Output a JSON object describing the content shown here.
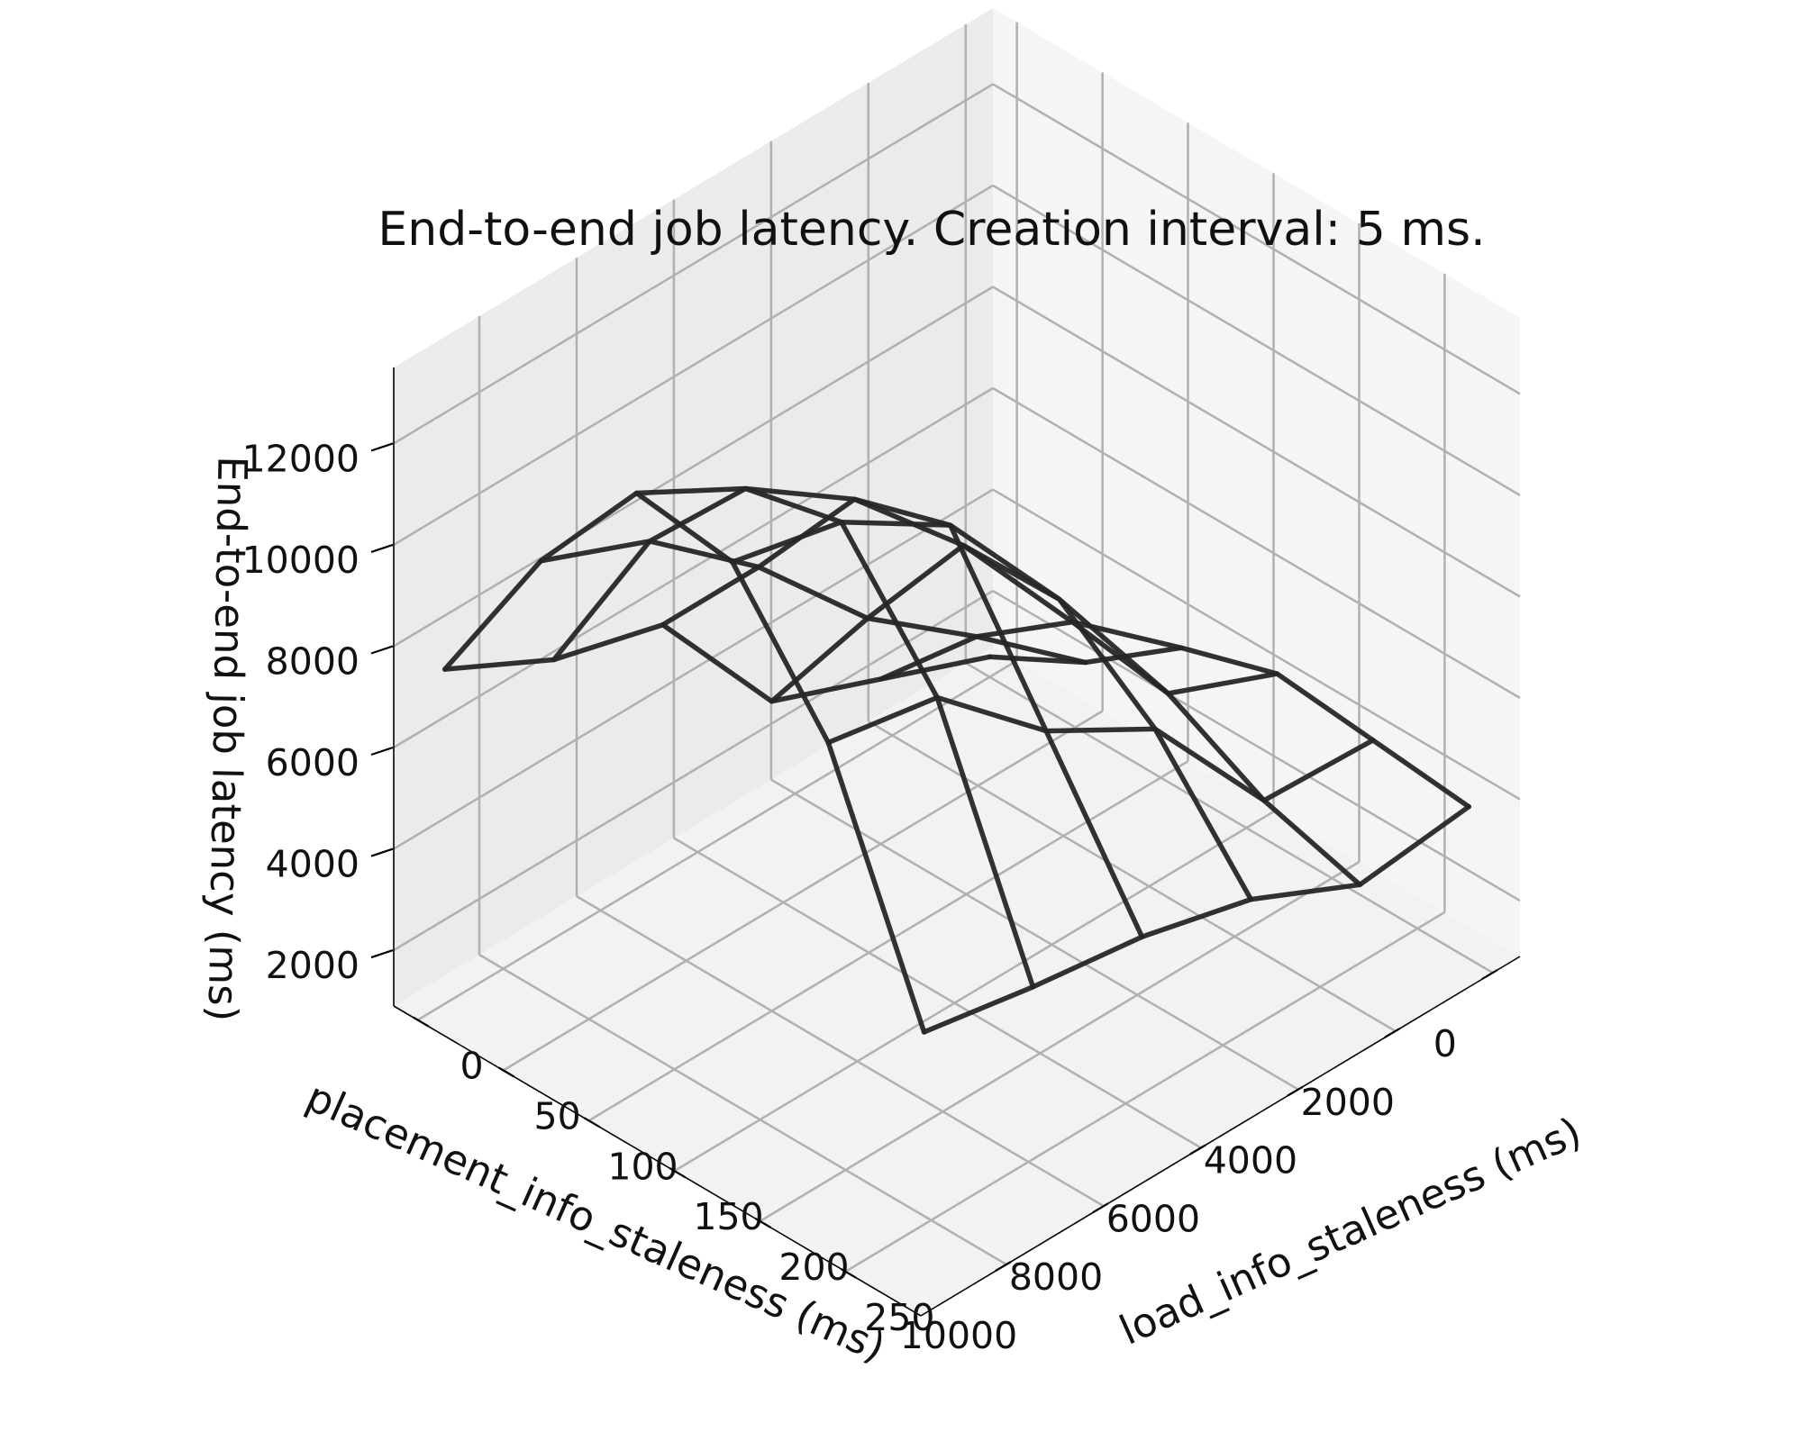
{
  "chart_data": {
    "type": "surface-wireframe",
    "title": "End-to-end job latency. Creation interval: 5 ms.",
    "xlabel": "load_info_staleness (ms)",
    "ylabel": "placement_info_staleness (ms)",
    "zlabel": "End-to-end job latency (ms)",
    "x_ticks": [
      0,
      50,
      100,
      150,
      200,
      250
    ],
    "y_ticks": [
      0,
      2000,
      4000,
      6000,
      8000,
      10000
    ],
    "z_ticks": [
      2000,
      4000,
      6000,
      8000,
      10000,
      12000
    ],
    "xlim": [
      -14,
      294
    ],
    "ylim": [
      -560,
      11760
    ],
    "zlim": [
      900,
      13500
    ],
    "x": [
      0,
      56,
      112,
      168,
      224,
      280
    ],
    "y": [
      0,
      2240,
      4480,
      6720,
      8960,
      11200
    ],
    "z": [
      [
        1300,
        2300,
        3700,
        4300,
        4100,
        3900
      ],
      [
        2150,
        4100,
        5500,
        5200,
        4200,
        3650
      ],
      [
        3000,
        5750,
        8300,
        8350,
        6900,
        4650
      ],
      [
        5800,
        8050,
        10500,
        11100,
        8150,
        5200
      ],
      [
        6400,
        9850,
        12000,
        12450,
        10100,
        5500
      ],
      [
        7500,
        10750,
        13200,
        12950,
        10500,
        5900
      ]
    ],
    "view": {
      "elev": 20,
      "azim": 45
    },
    "grid": true,
    "colors": {
      "wire": "#262626",
      "grid": "#b0b0b0",
      "pane": "#f2f2f2"
    }
  }
}
